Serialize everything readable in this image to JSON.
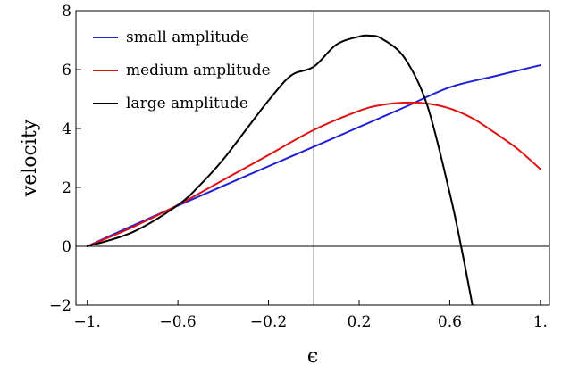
{
  "chart_data": {
    "type": "line",
    "xlabel": "ϵ",
    "ylabel": "velocity",
    "xlim": [
      -1.05,
      1.04
    ],
    "ylim": [
      -2,
      8
    ],
    "xticks": [
      {
        "value": -1.0,
        "label": "−1."
      },
      {
        "value": -0.6,
        "label": "−0.6"
      },
      {
        "value": -0.2,
        "label": "−0.2"
      },
      {
        "value": 0.2,
        "label": "0.2"
      },
      {
        "value": 0.6,
        "label": "0.6"
      },
      {
        "value": 1.0,
        "label": "1."
      }
    ],
    "yticks": [
      {
        "value": -2,
        "label": "−2"
      },
      {
        "value": 0,
        "label": "0"
      },
      {
        "value": 2,
        "label": "2"
      },
      {
        "value": 4,
        "label": "4"
      },
      {
        "value": 6,
        "label": "6"
      },
      {
        "value": 8,
        "label": "8"
      }
    ],
    "axes_lines": {
      "x_at": 0,
      "y_at": 0
    },
    "grid": false,
    "legend_position": "top-left",
    "series": [
      {
        "name": "small amplitude",
        "color": "#1f1fd6",
        "x": [
          -1.0,
          -0.8,
          -0.6,
          -0.4,
          -0.2,
          0.0,
          0.2,
          0.4,
          0.6,
          0.8,
          1.0
        ],
        "y": [
          0.0,
          0.7,
          1.38,
          2.05,
          2.72,
          3.38,
          4.05,
          4.72,
          5.4,
          5.78,
          6.15
        ]
      },
      {
        "name": "medium amplitude",
        "color": "#e01010",
        "x": [
          -1.0,
          -0.8,
          -0.6,
          -0.4,
          -0.2,
          0.0,
          0.2,
          0.3,
          0.4,
          0.5,
          0.6,
          0.7,
          0.8,
          0.9,
          1.0
        ],
        "y": [
          0.0,
          0.65,
          1.4,
          2.25,
          3.1,
          3.95,
          4.6,
          4.8,
          4.88,
          4.85,
          4.68,
          4.35,
          3.85,
          3.3,
          2.62
        ]
      },
      {
        "name": "large amplitude",
        "color": "#000000",
        "x": [
          -1.0,
          -0.8,
          -0.6,
          -0.5,
          -0.4,
          -0.3,
          -0.2,
          -0.1,
          0.0,
          0.1,
          0.2,
          0.25,
          0.3,
          0.4,
          0.5,
          0.6,
          0.65,
          0.7
        ],
        "y": [
          0.0,
          0.48,
          1.4,
          2.1,
          2.95,
          3.95,
          4.95,
          5.8,
          6.1,
          6.85,
          7.12,
          7.15,
          7.05,
          6.4,
          4.8,
          1.8,
          0.0,
          -2.0
        ]
      }
    ]
  }
}
